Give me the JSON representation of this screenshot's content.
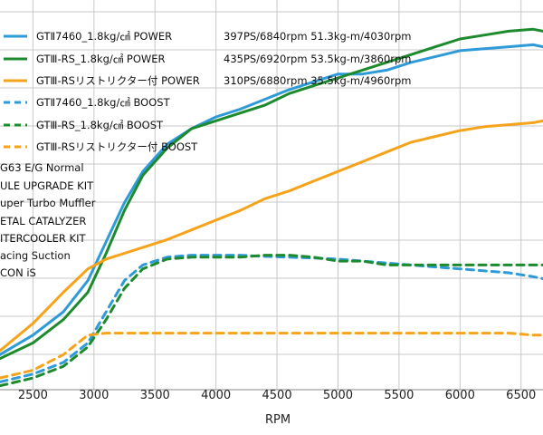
{
  "chart_data": {
    "type": "line",
    "xlabel": "RPM",
    "xlim": [
      2230,
      6680
    ],
    "ylim": [
      0,
      1
    ],
    "x_ticks": [
      2500,
      3000,
      3500,
      4000,
      4500,
      5000,
      5500,
      6000,
      6500
    ],
    "grid": true,
    "legend_position": "top-left",
    "series": [
      {
        "name": "GTⅡ7460_1.8kg/㎠ POWER",
        "stat": "397PS/6840rpm 51.3kg-m/4030rpm",
        "color": "#2e9ad8",
        "dash": "solid",
        "x": [
          2230,
          2500,
          2750,
          2950,
          3100,
          3250,
          3400,
          3600,
          3800,
          4000,
          4200,
          4400,
          4600,
          4800,
          5000,
          5200,
          5400,
          5600,
          5800,
          6000,
          6200,
          6400,
          6600,
          6680
        ],
        "y": [
          0.09,
          0.14,
          0.2,
          0.28,
          0.38,
          0.48,
          0.56,
          0.63,
          0.67,
          0.7,
          0.72,
          0.745,
          0.77,
          0.79,
          0.81,
          0.81,
          0.82,
          0.84,
          0.855,
          0.87,
          0.875,
          0.88,
          0.885,
          0.88
        ]
      },
      {
        "name": "GTⅢ-RS_1.8kg/㎠ POWER",
        "stat": "435PS/6920rpm 53.5kg-m/3860rpm",
        "color": "#1e8a2e",
        "dash": "solid",
        "x": [
          2230,
          2500,
          2750,
          2950,
          3100,
          3250,
          3400,
          3600,
          3800,
          4000,
          4200,
          4400,
          4600,
          4800,
          5000,
          5200,
          5400,
          5600,
          5800,
          6000,
          6200,
          6400,
          6600,
          6680
        ],
        "y": [
          0.08,
          0.12,
          0.18,
          0.25,
          0.35,
          0.46,
          0.55,
          0.62,
          0.67,
          0.69,
          0.71,
          0.73,
          0.76,
          0.78,
          0.8,
          0.82,
          0.84,
          0.86,
          0.88,
          0.9,
          0.91,
          0.92,
          0.925,
          0.92
        ]
      },
      {
        "name": "GTⅢ-RSリストリクター付 POWER",
        "stat": "310PS/6880rpm 35.5kg-m/4960rpm",
        "color": "#f5a31a",
        "dash": "solid",
        "x": [
          2230,
          2500,
          2750,
          2950,
          3100,
          3250,
          3400,
          3600,
          3800,
          4000,
          4200,
          4400,
          4600,
          4800,
          5000,
          5200,
          5400,
          5600,
          5800,
          6000,
          6200,
          6400,
          6600,
          6680
        ],
        "y": [
          0.1,
          0.17,
          0.25,
          0.31,
          0.335,
          0.35,
          0.365,
          0.385,
          0.41,
          0.435,
          0.46,
          0.49,
          0.51,
          0.535,
          0.56,
          0.585,
          0.61,
          0.635,
          0.65,
          0.665,
          0.675,
          0.68,
          0.685,
          0.69
        ]
      },
      {
        "name": "GTⅡ7460_1.8kg/㎠ BOOST",
        "stat": "",
        "color": "#2e9ad8",
        "dash": "dashed",
        "x": [
          2230,
          2500,
          2750,
          2950,
          3100,
          3250,
          3400,
          3600,
          3800,
          4000,
          4200,
          4400,
          4600,
          4800,
          5000,
          5200,
          5400,
          5600,
          5800,
          6000,
          6200,
          6400,
          6600,
          6680
        ],
        "y": [
          0.02,
          0.04,
          0.07,
          0.12,
          0.2,
          0.28,
          0.32,
          0.34,
          0.345,
          0.345,
          0.345,
          0.342,
          0.34,
          0.338,
          0.335,
          0.33,
          0.325,
          0.32,
          0.315,
          0.31,
          0.305,
          0.3,
          0.29,
          0.285
        ]
      },
      {
        "name": "GTⅢ-RS_1.8kg/㎠ BOOST",
        "stat": "",
        "color": "#1e8a2e",
        "dash": "dashed",
        "x": [
          2230,
          2500,
          2750,
          2950,
          3100,
          3250,
          3400,
          3600,
          3800,
          4000,
          4200,
          4400,
          4600,
          4800,
          5000,
          5200,
          5400,
          5600,
          5800,
          6000,
          6200,
          6400,
          6600,
          6680
        ],
        "y": [
          0.01,
          0.03,
          0.06,
          0.11,
          0.18,
          0.26,
          0.31,
          0.335,
          0.34,
          0.34,
          0.34,
          0.345,
          0.345,
          0.34,
          0.33,
          0.33,
          0.32,
          0.32,
          0.32,
          0.32,
          0.32,
          0.32,
          0.32,
          0.32
        ]
      },
      {
        "name": "GTⅢ-RSリストリクター付 BOOST",
        "stat": "",
        "color": "#f5a31a",
        "dash": "dashed",
        "x": [
          2230,
          2500,
          2750,
          2950,
          3100,
          3250,
          3400,
          3600,
          3800,
          4000,
          4200,
          4400,
          4600,
          4800,
          5000,
          5200,
          5400,
          5600,
          5800,
          6000,
          6200,
          6400,
          6600,
          6680
        ],
        "y": [
          0.03,
          0.05,
          0.09,
          0.14,
          0.145,
          0.145,
          0.145,
          0.145,
          0.145,
          0.145,
          0.145,
          0.145,
          0.145,
          0.145,
          0.145,
          0.145,
          0.145,
          0.145,
          0.145,
          0.145,
          0.145,
          0.145,
          0.14,
          0.14
        ]
      }
    ],
    "modifications": [
      "G63 E/G Normal",
      "ULE UPGRADE KIT",
      "uper Turbo Muffler",
      "ETAL CATALYZER",
      "ITERCOOLER KIT",
      "acing Suction",
      "CON iS"
    ]
  }
}
